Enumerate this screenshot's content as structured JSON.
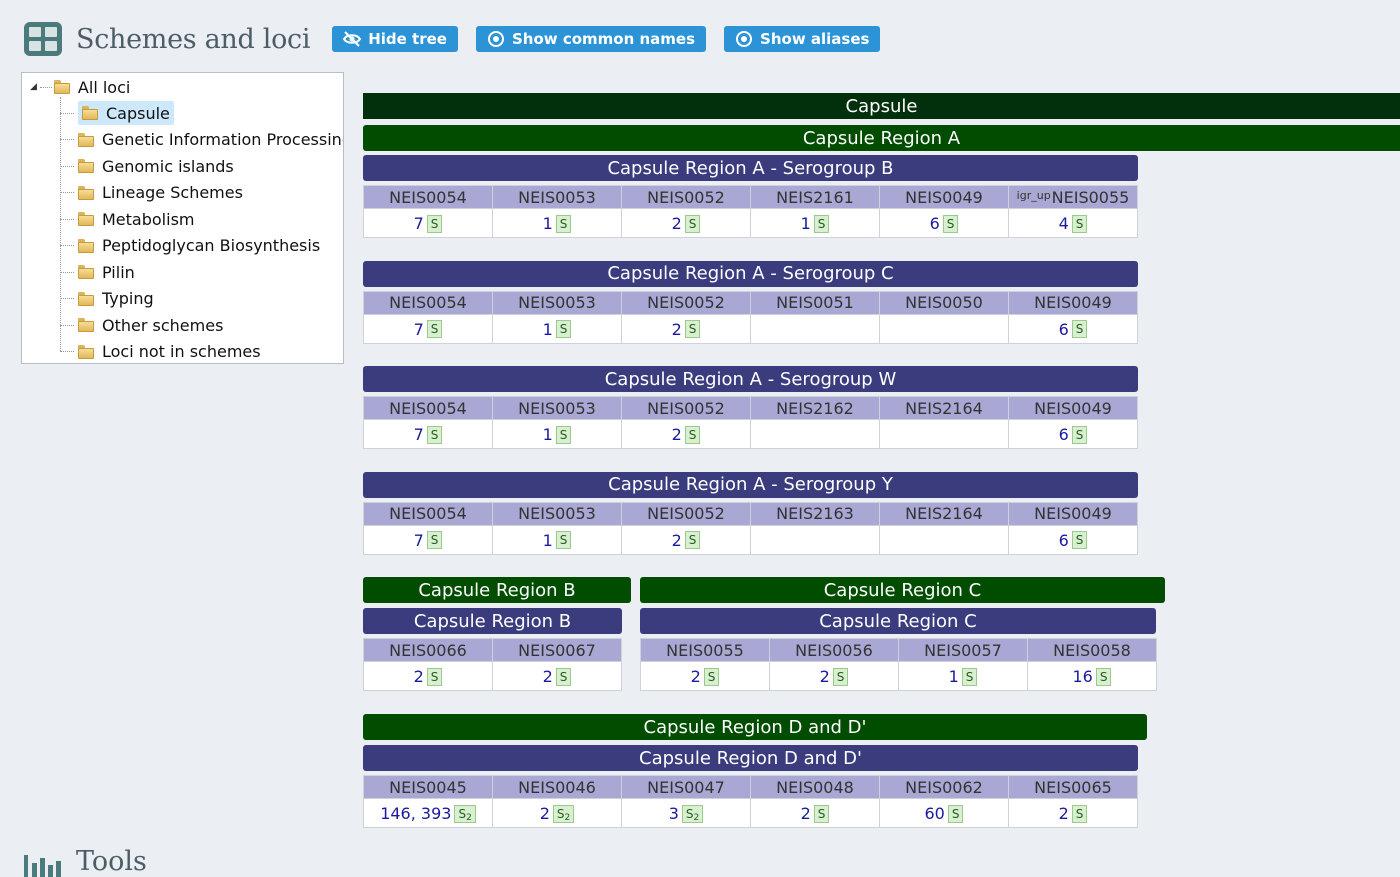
{
  "header": {
    "title": "Schemes and loci",
    "buttons": {
      "hide_tree": "Hide tree",
      "show_common_names": "Show common names",
      "show_aliases": "Show aliases"
    }
  },
  "tree": {
    "root": "All loci",
    "items": [
      "Capsule",
      "Genetic Information Processing",
      "Genomic islands",
      "Lineage Schemes",
      "Metabolism",
      "Peptidoglycan Biosynthesis",
      "Pilin",
      "Typing",
      "Other schemes",
      "Loci not in schemes"
    ],
    "selected": "Capsule"
  },
  "main": {
    "top_scheme": "Capsule",
    "region_a": {
      "name": "Capsule Region A",
      "serogroups": [
        {
          "name": "Capsule Region A - Serogroup B",
          "loci": [
            {
              "name": "NEIS0054",
              "value": "7",
              "badge": "S"
            },
            {
              "name": "NEIS0053",
              "value": "1",
              "badge": "S"
            },
            {
              "name": "NEIS0052",
              "value": "2",
              "badge": "S"
            },
            {
              "name": "NEIS2161",
              "value": "1",
              "badge": "S"
            },
            {
              "name": "NEIS0049",
              "value": "6",
              "badge": "S"
            },
            {
              "prefix": "igr_up",
              "name": "NEIS0055",
              "value": "4",
              "badge": "S"
            }
          ]
        },
        {
          "name": "Capsule Region A - Serogroup C",
          "loci": [
            {
              "name": "NEIS0054",
              "value": "7",
              "badge": "S"
            },
            {
              "name": "NEIS0053",
              "value": "1",
              "badge": "S"
            },
            {
              "name": "NEIS0052",
              "value": "2",
              "badge": "S"
            },
            {
              "name": "NEIS0051",
              "value": "",
              "badge": ""
            },
            {
              "name": "NEIS0050",
              "value": "",
              "badge": ""
            },
            {
              "name": "NEIS0049",
              "value": "6",
              "badge": "S"
            }
          ]
        },
        {
          "name": "Capsule Region A - Serogroup W",
          "loci": [
            {
              "name": "NEIS0054",
              "value": "7",
              "badge": "S"
            },
            {
              "name": "NEIS0053",
              "value": "1",
              "badge": "S"
            },
            {
              "name": "NEIS0052",
              "value": "2",
              "badge": "S"
            },
            {
              "name": "NEIS2162",
              "value": "",
              "badge": ""
            },
            {
              "name": "NEIS2164",
              "value": "",
              "badge": ""
            },
            {
              "name": "NEIS0049",
              "value": "6",
              "badge": "S"
            }
          ]
        },
        {
          "name": "Capsule Region A - Serogroup Y",
          "loci": [
            {
              "name": "NEIS0054",
              "value": "7",
              "badge": "S"
            },
            {
              "name": "NEIS0053",
              "value": "1",
              "badge": "S"
            },
            {
              "name": "NEIS0052",
              "value": "2",
              "badge": "S"
            },
            {
              "name": "NEIS2163",
              "value": "",
              "badge": ""
            },
            {
              "name": "NEIS2164",
              "value": "",
              "badge": ""
            },
            {
              "name": "NEIS0049",
              "value": "6",
              "badge": "S"
            }
          ]
        }
      ]
    },
    "region_b": {
      "group": "Capsule Region B",
      "scheme": "Capsule Region B",
      "loci": [
        {
          "name": "NEIS0066",
          "value": "2",
          "badge": "S"
        },
        {
          "name": "NEIS0067",
          "value": "2",
          "badge": "S"
        }
      ]
    },
    "region_c": {
      "group": "Capsule Region C",
      "scheme": "Capsule Region C",
      "loci": [
        {
          "name": "NEIS0055",
          "value": "2",
          "badge": "S"
        },
        {
          "name": "NEIS0056",
          "value": "2",
          "badge": "S"
        },
        {
          "name": "NEIS0057",
          "value": "1",
          "badge": "S"
        },
        {
          "name": "NEIS0058",
          "value": "16",
          "badge": "S"
        }
      ]
    },
    "region_d": {
      "group": "Capsule Region D and D'",
      "scheme": "Capsule Region D and D'",
      "loci": [
        {
          "name": "NEIS0045",
          "value": "146, 393",
          "badge": "S",
          "badge_sub": "2"
        },
        {
          "name": "NEIS0046",
          "value": "2",
          "badge": "S",
          "badge_sub": "2"
        },
        {
          "name": "NEIS0047",
          "value": "3",
          "badge": "S",
          "badge_sub": "2"
        },
        {
          "name": "NEIS0048",
          "value": "2",
          "badge": "S"
        },
        {
          "name": "NEIS0062",
          "value": "60",
          "badge": "S"
        },
        {
          "name": "NEIS0065",
          "value": "2",
          "badge": "S"
        }
      ]
    }
  },
  "tools": {
    "title": "Tools"
  },
  "colors": {
    "button": "#2c94d6",
    "scheme_dark": "#03300c",
    "scheme_green": "#004d00",
    "scheme_purple": "#3a3c7e",
    "locus_header": "#a9a8d4"
  }
}
